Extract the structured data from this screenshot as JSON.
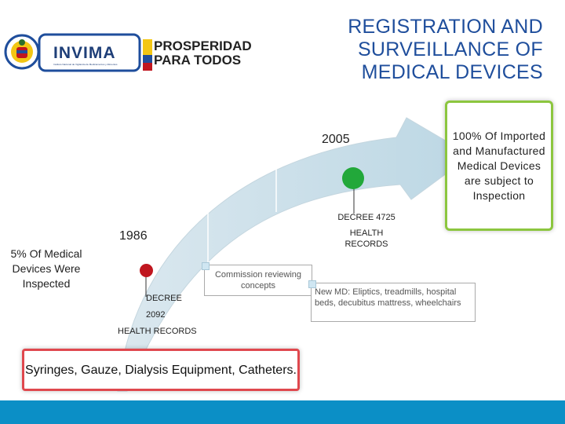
{
  "title": {
    "line1": "REGISTRATION  AND",
    "line2": "SURVEILLANCE OF",
    "line3": "MEDICAL DEVICES"
  },
  "logos": {
    "invima": "INVIMA",
    "invima_subtitle": "Instituto Nacional de Vigilancia de Medicamentos y Alimentos",
    "prosperidad_line1": "PROSPERIDAD",
    "prosperidad_line2": "PARA TODOS"
  },
  "timeline": {
    "year_start": "1986",
    "year_end": "2005",
    "start_label": "5% Of Medical Devices  Were Inspected",
    "end_label": "100% Of Imported and Manufactured Medical Devices are subject  to Inspection",
    "decree_start_line1": "DECREE",
    "decree_start_line2": "2092",
    "decree_start_line3": "HEALTH RECORDS",
    "decree_end_line1": "DECREE 4725",
    "decree_end_line2": "HEALTH",
    "decree_end_line3": "RECORDS",
    "commission_note": "Commission reviewing concepts",
    "new_md_note": "New MD: Eliptics, treadmills, hospital beds, decubitus mattress, wheelchairs",
    "start_devices": "Syringes, Gauze, Dialysis Equipment, Catheters."
  },
  "colors": {
    "title": "#1f4e9c",
    "dot_start": "#c0161f",
    "dot_end": "#22a83a",
    "box_green": "#8cc63f",
    "box_red": "#e0484e",
    "footer": "#0b8fc6"
  }
}
